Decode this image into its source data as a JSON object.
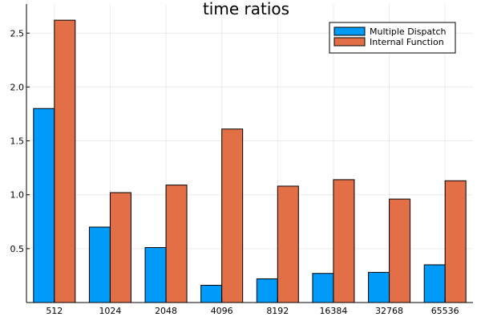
{
  "chart_data": {
    "type": "bar",
    "title": "time ratios",
    "xlabel": "",
    "ylabel": "",
    "categories": [
      "512",
      "1024",
      "2048",
      "4096",
      "8192",
      "16384",
      "32768",
      "65536"
    ],
    "series": [
      {
        "name": "Multiple Dispatch",
        "color": "#009af9",
        "values": [
          1.8,
          0.7,
          0.51,
          0.16,
          0.22,
          0.27,
          0.28,
          0.35
        ]
      },
      {
        "name": "Internal Function",
        "color": "#e26f46",
        "values": [
          2.62,
          1.02,
          1.09,
          1.61,
          1.08,
          1.14,
          0.96,
          1.13
        ]
      }
    ],
    "ylim": [
      0.0,
      2.77
    ],
    "yticks": [
      0.5,
      1.0,
      1.5,
      2.0,
      2.5
    ],
    "ytick_labels": [
      "0.5",
      "1.0",
      "1.5",
      "2.0",
      "2.5"
    ],
    "grid": true,
    "legend_position": "top-right"
  }
}
